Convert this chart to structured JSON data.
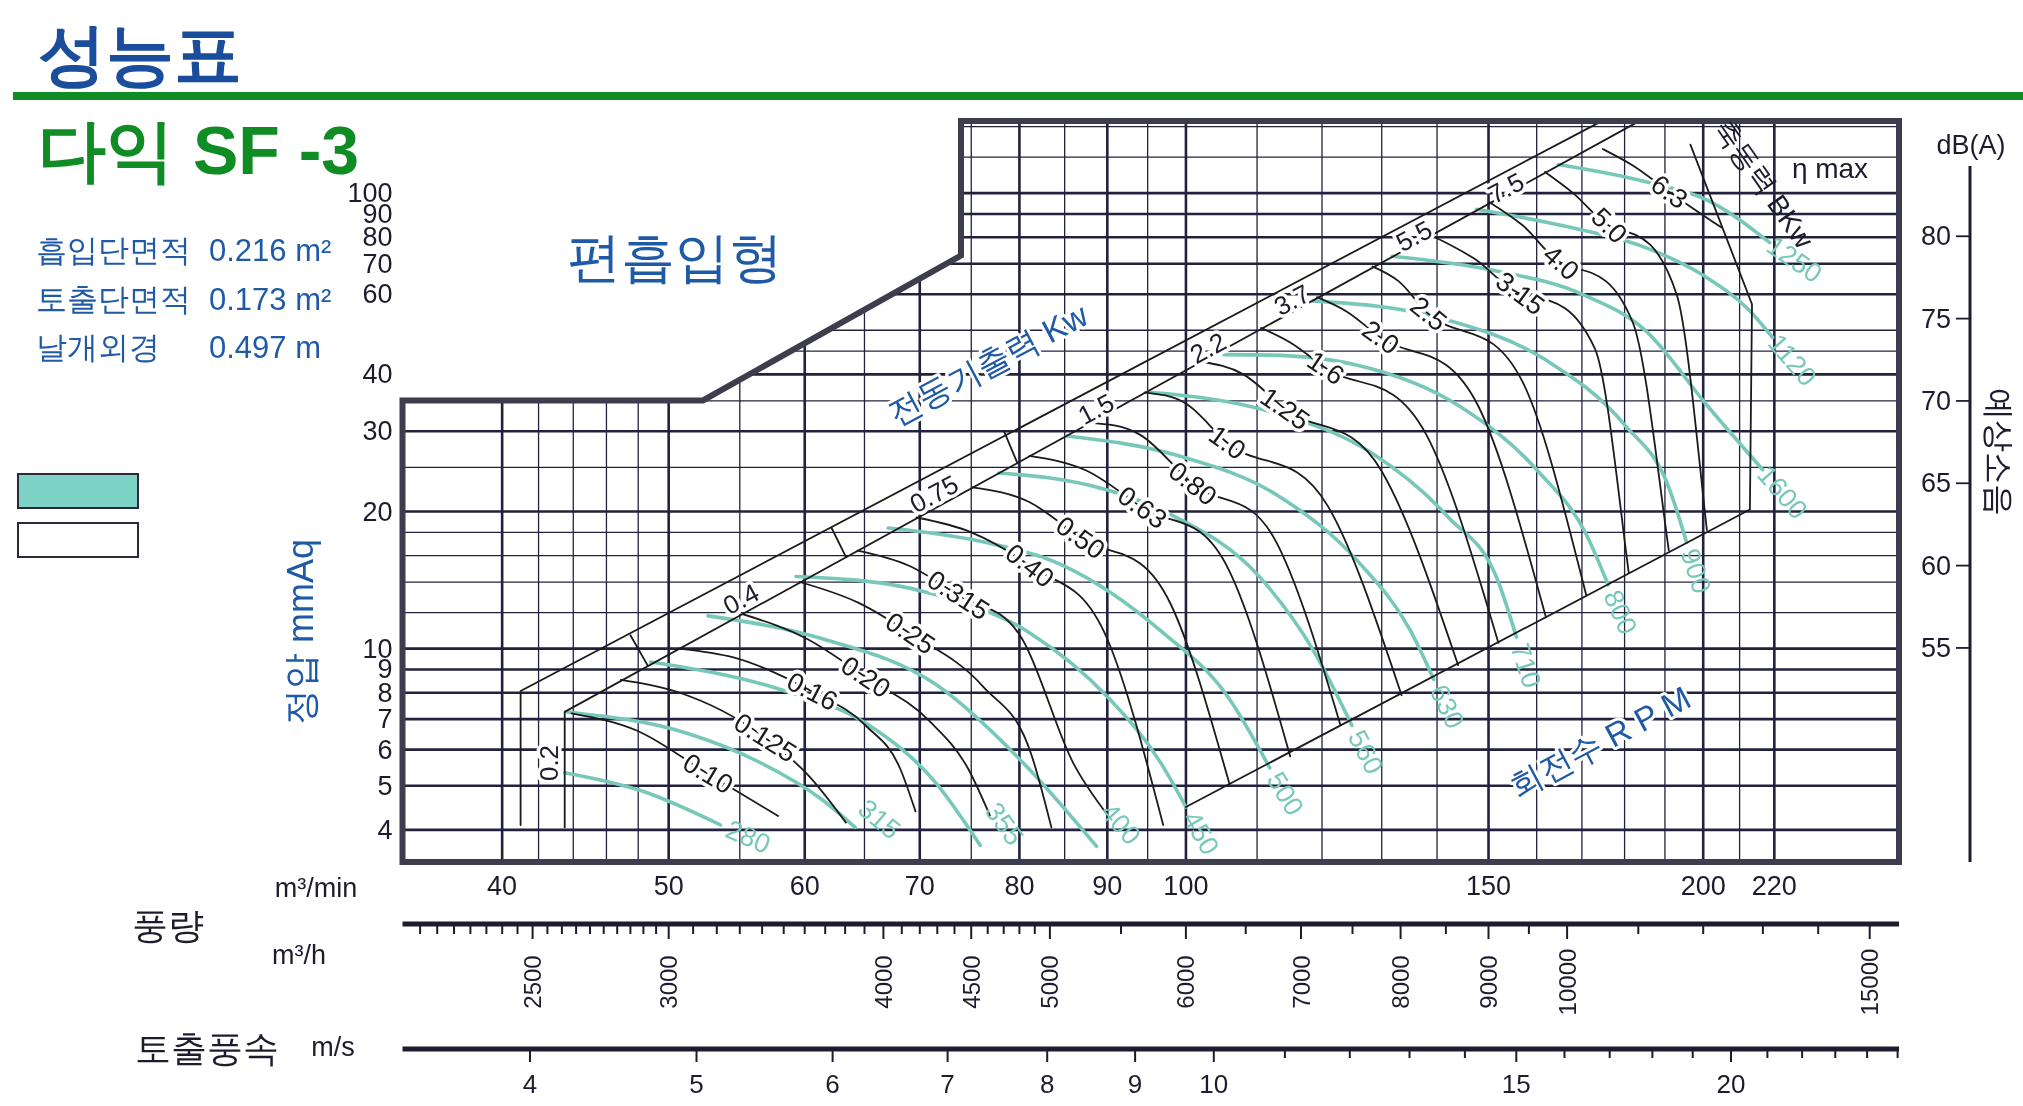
{
  "chart_data": {
    "type": "line",
    "title": "성능표",
    "subtitle": "다익 SF -3",
    "xlabel": "m³/min",
    "ylabel": "정압 mmAq",
    "y2label": "예상소음",
    "log": "xy",
    "grid": true,
    "xlim": [
      35,
      260
    ],
    "ylim": [
      3.4,
      144
    ],
    "xticks": [
      40,
      {
        "value": 42,
        "label": null
      },
      {
        "value": 44,
        "label": null
      },
      {
        "value": 46,
        "label": null
      },
      {
        "value": 48,
        "label": null
      },
      50,
      {
        "value": 55,
        "label": null
      },
      60,
      {
        "value": 65,
        "label": null
      },
      70,
      {
        "value": 75,
        "label": null
      },
      80,
      {
        "value": 85,
        "label": null
      },
      90,
      {
        "value": 95,
        "label": null
      },
      100,
      {
        "value": 110,
        "label": null
      },
      {
        "value": 120,
        "label": null
      },
      {
        "value": 130,
        "label": null
      },
      {
        "value": 140,
        "label": null
      },
      150,
      {
        "value": 160,
        "label": null
      },
      {
        "value": 170,
        "label": null
      },
      {
        "value": 180,
        "label": null
      },
      {
        "value": 190,
        "label": null
      },
      200,
      {
        "value": 210,
        "label": null
      },
      220
    ],
    "yticks": [
      4,
      5,
      6,
      7,
      8,
      9,
      10,
      {
        "value": 12,
        "label": null
      },
      {
        "value": 14,
        "label": null
      },
      {
        "value": 16,
        "label": null
      },
      {
        "value": 18,
        "label": null
      },
      20,
      {
        "value": 25,
        "label": null
      },
      30,
      {
        "value": 35,
        "label": null
      },
      40,
      {
        "value": 45,
        "label": null
      },
      {
        "value": 50,
        "label": null
      },
      60,
      70,
      80,
      90,
      100,
      {
        "value": 120,
        "label": null
      },
      {
        "value": 140,
        "label": null
      }
    ],
    "y2lim": [
      42,
      87
    ],
    "y2ticks": [
      55,
      60,
      65,
      70,
      75,
      80
    ],
    "annotations": [
      "흡입단면적",
      "0.216 m²",
      "토출단면적",
      "0.173 m²",
      "날개외경",
      "0.497 m",
      "편흡입형",
      "dB(A)",
      "전동기출력 Kw",
      "축동력 BKw",
      "η max",
      "회전수 R P M",
      "0.2",
      "0.4",
      "0.75",
      "1.5",
      "2.2",
      "3.7",
      "5.5",
      "7.5",
      "풍량",
      "m³/h",
      "토출풍속",
      "m/s",
      "2500",
      "3000",
      "4000",
      "4500",
      "5000",
      "6000",
      "7000",
      "8000",
      "9000",
      "10000",
      "15000",
      "4",
      "5",
      "6",
      "7",
      "8",
      "9",
      "10",
      "15",
      "20"
    ],
    "series": [
      {
        "name": "280",
        "color": "#78c8b9",
        "x": [
          43.5,
          48.3,
          53.6
        ],
        "values": [
          5.34,
          4.86,
          4.1
        ]
      },
      {
        "name": "315",
        "color": "#78c8b9",
        "x": [
          43.6,
          51.3,
          56.2,
          61.5,
          64.2
        ],
        "values": [
          7.26,
          6.51,
          5.68,
          4.64,
          4.05
        ]
      },
      {
        "name": "355",
        "color": "#78c8b9",
        "x": [
          48.8,
          57.9,
          65.3,
          71.5,
          75.9
        ],
        "values": [
          9.34,
          8.16,
          6.81,
          5.08,
          3.7
        ]
      },
      {
        "name": "400",
        "color": "#78c8b9",
        "x": [
          52.7,
          61.5,
          71.5,
          80.6,
          88.7
        ],
        "values": [
          11.8,
          10.5,
          8.35,
          5.56,
          3.68
        ]
      },
      {
        "name": "450",
        "color": "#78c8b9",
        "x": [
          59.3,
          70.6,
          81.2,
          90.1,
          96.6,
          100
        ],
        "values": [
          14.4,
          13.3,
          10.8,
          7.81,
          5.64,
          4.49
        ]
      },
      {
        "name": "500",
        "color": "#78c8b9",
        "x": [
          67.1,
          75.9,
          84.9,
          96.8,
          105.7,
          111.9
        ],
        "values": [
          18.4,
          17.2,
          15.2,
          10.9,
          7.87,
          5.47
        ]
      },
      {
        "name": "560",
        "color": "#78c8b9",
        "x": [
          77.8,
          88,
          97.7,
          110.5,
          118.6,
          124.9
        ],
        "values": [
          24.3,
          22.8,
          19.8,
          14.3,
          9.92,
          6.78
        ]
      },
      {
        "name": "630",
        "color": "#78c8b9",
        "x": [
          85.2,
          99,
          113.5,
          126,
          135,
          139.4
        ],
        "values": [
          29.3,
          26.5,
          21.5,
          15.5,
          11,
          8.55
        ]
      },
      {
        "name": "710",
        "color": "#78c8b9",
        "x": [
          95.1,
          111.4,
          128,
          142,
          152,
          155.7
        ],
        "values": [
          36.6,
          33.3,
          27,
          19.5,
          14,
          10.6
        ]
      },
      {
        "name": "800",
        "color": "#78c8b9",
        "x": [
          105.2,
          125.5,
          144.4,
          160,
          171,
          176.1
        ],
        "values": [
          44.2,
          42,
          34,
          24.7,
          17.8,
          13.8
        ]
      },
      {
        "name": "900",
        "color": "#78c8b9",
        "x": [
          118.6,
          141,
          162,
          180,
          191,
          195.6
        ],
        "values": [
          58,
          53,
          43,
          31,
          22.6,
          17.1
        ]
      },
      {
        "name": "1600",
        "color": "#78c8b9",
        "x": [
          131.8,
          151.6,
          170,
          185,
          201.3,
          216.6
        ],
        "values": [
          72.7,
          67.5,
          60,
          50,
          34,
          24.7
        ]
      },
      {
        "name": "1120",
        "color": "#78c8b9",
        "x": [
          147.6,
          167.6,
          185,
          200,
          212.7,
          219.5
        ],
        "values": [
          92.2,
          84,
          76,
          66,
          55.3,
          48.2
        ]
      },
      {
        "name": "1250",
        "color": "#78c8b9",
        "x": [
          164.7,
          185,
          202,
          218.6
        ],
        "values": [
          115.6,
          106,
          95.7,
          77.9
        ]
      },
      {
        "name": "0.10",
        "color": "#1b1b1b",
        "x": [
          43.9,
          47.9,
          52.7,
          57.9
        ],
        "values": [
          7.21,
          6.61,
          5.31,
          4.29
        ]
      },
      {
        "name": "0.125",
        "color": "#1b1b1b",
        "x": [
          46.9,
          50.5,
          56.9,
          60.2,
          63.4
        ],
        "values": [
          8.54,
          8.05,
          6.37,
          5.3,
          4.15
        ]
      },
      {
        "name": "0.16",
        "color": "#1b1b1b",
        "x": [
          50.7,
          54.6,
          60.6,
          65.1,
          68.2,
          69.6
        ],
        "values": [
          10.0,
          9.55,
          8.05,
          6.78,
          5.44,
          4.39
        ]
      },
      {
        "name": "0.20",
        "color": "#1b1b1b",
        "x": [
          55.2,
          60.2,
          65.1,
          70.9,
          74.7,
          76.9
        ],
        "values": [
          11.9,
          10.5,
          8.66,
          6.94,
          5.44,
          4.3
        ]
      },
      {
        "name": "0.25",
        "color": "#1b1b1b",
        "x": [
          59.6,
          64.5,
          69.1,
          76.2,
          81.3,
          83.5
        ],
        "values": [
          14.0,
          12.6,
          10.8,
          8.25,
          5.85,
          4.05
        ]
      },
      {
        "name": "0.315",
        "color": "#1b1b1b",
        "x": [
          64.4,
          69,
          73.7,
          80.3,
          86,
          90.3
        ],
        "values": [
          16.4,
          15.2,
          13.1,
          10.5,
          5.6,
          4.25
        ]
      },
      {
        "name": "0.40",
        "color": "#1b1b1b",
        "x": [
          69.7,
          75,
          81.1,
          90,
          97
        ],
        "values": [
          19.4,
          18,
          15.2,
          10.5,
          4.1
        ]
      },
      {
        "name": "0.50",
        "color": "#1b1b1b",
        "x": [
          75.1,
          81,
          86.8,
          98,
          106
        ],
        "values": [
          22.6,
          21,
          17.5,
          12.5,
          5.05
        ]
      },
      {
        "name": "0.63",
        "color": "#1b1b1b",
        "x": [
          81.1,
          87.5,
          94.3,
          106,
          115
        ],
        "values": [
          26.5,
          24.6,
          20.4,
          14.8,
          5.8
        ]
      },
      {
        "name": "0.80",
        "color": "#1b1b1b",
        "x": [
          87.8,
          94,
          100.9,
          113,
          123
        ],
        "values": [
          31.3,
          29.5,
          23.0,
          17,
          6.8
        ]
      },
      {
        "name": "1.0",
        "color": "#1b1b1b",
        "x": [
          94.6,
          100,
          105.7,
          121,
          133.5
        ],
        "values": [
          36.5,
          34.5,
          28.3,
          20.5,
          7.9
        ]
      },
      {
        "name": "1.25",
        "color": "#1b1b1b",
        "x": [
          101.9,
          108,
          114.2,
          130,
          144
        ],
        "values": [
          42.7,
          40,
          33.6,
          24.5,
          9.2
        ]
      },
      {
        "name": "1.6",
        "color": "#1b1b1b",
        "x": [
          110.6,
          115,
          120.6,
          138,
          152
        ],
        "values": [
          50.6,
          47,
          41.3,
          29.5,
          10.3
        ]
      },
      {
        "name": "2.0",
        "color": "#1b1b1b",
        "x": [
          119.2,
          124,
          129.8,
          148,
          162
        ],
        "values": [
          59.1,
          55,
          48.2,
          34,
          11.7
        ]
      },
      {
        "name": "2.5",
        "color": "#1b1b1b",
        "x": [
          128.4,
          133,
          138.4,
          157,
          171
        ],
        "values": [
          69,
          64,
          54.3,
          38.5,
          13.1
        ]
      },
      {
        "name": "3.15",
        "color": "#1b1b1b",
        "x": [
          138.7,
          147,
          156.5,
          173,
          181
        ],
        "values": [
          81,
          72,
          60.2,
          45.5,
          14.7
        ]
      },
      {
        "name": "4.0",
        "color": "#1b1b1b",
        "x": [
          150.2,
          157,
          165.3,
          182,
          191
        ],
        "values": [
          95.5,
          85,
          70.3,
          52,
          16.4
        ]
      },
      {
        "name": "5.0",
        "color": "#1b1b1b",
        "x": [
          161.8,
          168,
          176.3,
          193,
          201
        ],
        "values": [
          111.3,
          100,
          84.8,
          60,
          18.2
        ]
      },
      {
        "name": "6.3",
        "color": "#1b1b1b",
        "x": [
          174.8,
          182,
          191.1,
          205
        ],
        "values": [
          125,
          115,
          100.6,
          84
        ]
      },
      {
        "color": "#1b1b1b",
        "x": [
          41,
          41,
          174
        ],
        "values": [
          4.1,
          8.07,
          143
        ]
      },
      {
        "color": "#1b1b1b",
        "x": [
          43.5,
          43.5,
          183
        ],
        "values": [
          4.05,
          7.26,
          143
        ]
      },
      {
        "color": "#1b1b1b",
        "x": [
          100,
          212.9,
          213.5,
          196.6
        ],
        "values": [
          4.49,
          20.2,
          57,
          127.8
        ]
      },
      {
        "color": "#1b1b1b",
        "x": [
          47.5,
          48.6
        ],
        "values": [
          10.7,
          9.2
        ]
      },
      {
        "color": "#1b1b1b",
        "x": [
          62.2,
          63.4
        ],
        "values": [
          18.4,
          15.9
        ]
      },
      {
        "color": "#1b1b1b",
        "x": [
          78.4,
          79.8
        ],
        "values": [
          29.9,
          25.5
        ]
      }
    ]
  }
}
